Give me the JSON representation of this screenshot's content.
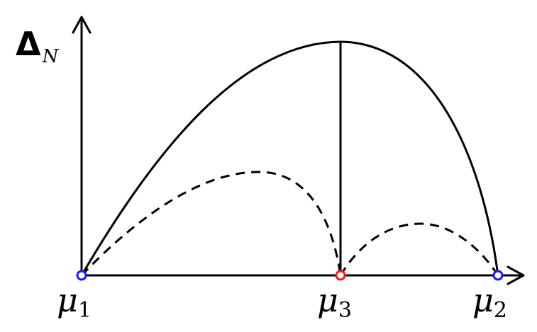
{
  "y_axis_label": {
    "symbol": "Δ",
    "subscript": "N"
  },
  "points": [
    {
      "symbol": "μ",
      "subscript": "1",
      "color": "#1a1aff"
    },
    {
      "symbol": "μ",
      "subscript": "3",
      "color": "#ff1a1a"
    },
    {
      "symbol": "μ",
      "subscript": "2",
      "color": "#1a1aff"
    }
  ]
}
